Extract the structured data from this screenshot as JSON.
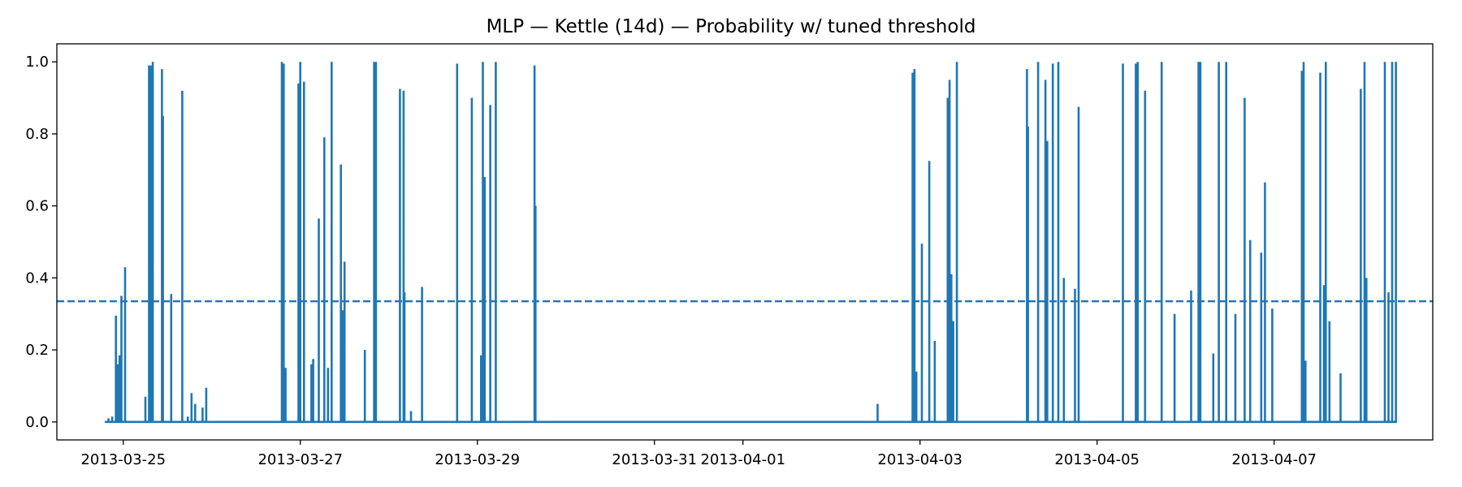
{
  "chart_data": {
    "type": "line",
    "title": "MLP — Kettle (14d) — Probability w/ tuned threshold",
    "xlabel": "",
    "ylabel": "",
    "x_axis_type": "date",
    "xlim": [
      "2013-03-24T06:00",
      "2013-04-08T19:00"
    ],
    "ylim": [
      -0.05,
      1.05
    ],
    "x_ticks": [
      "2013-03-25",
      "2013-03-27",
      "2013-03-29",
      "2013-03-31",
      "2013-04-01",
      "2013-04-03",
      "2013-04-05",
      "2013-04-07"
    ],
    "y_ticks": [
      0.0,
      0.2,
      0.4,
      0.6,
      0.8,
      1.0
    ],
    "y_tick_labels": [
      "0.0",
      "0.2",
      "0.4",
      "0.6",
      "0.8",
      "1.0"
    ],
    "grid": false,
    "legend": "none",
    "line_color": "#1f77b4",
    "threshold": {
      "value": 0.335,
      "style": "dashed",
      "color": "#1f77b4"
    },
    "series": [
      {
        "x_start": "2013-03-24T19:00",
        "x_end": "2013-04-07T21:00",
        "baseline": 0.0,
        "spikes": [
          [
            "2013-03-24T20:00",
            0.01
          ],
          [
            "2013-03-24T21:00",
            0.015
          ],
          [
            "2013-03-24T22:00",
            0.295
          ],
          [
            "2013-03-24T22:30",
            0.16
          ],
          [
            "2013-03-24T23:00",
            0.185
          ],
          [
            "2013-03-24T23:30",
            0.35
          ],
          [
            "2013-03-25T00:30",
            0.43
          ],
          [
            "2013-03-25T06:00",
            0.07
          ],
          [
            "2013-03-25T07:00",
            0.99
          ],
          [
            "2013-03-25T07:30",
            0.99
          ],
          [
            "2013-03-25T08:00",
            1.0
          ],
          [
            "2013-03-25T10:30",
            0.98
          ],
          [
            "2013-03-25T10:45",
            0.85
          ],
          [
            "2013-03-25T13:00",
            0.355
          ],
          [
            "2013-03-25T16:00",
            0.92
          ],
          [
            "2013-03-25T17:30",
            0.015
          ],
          [
            "2013-03-25T18:30",
            0.08
          ],
          [
            "2013-03-25T19:30",
            0.05
          ],
          [
            "2013-03-25T21:30",
            0.04
          ],
          [
            "2013-03-25T22:30",
            0.095
          ],
          [
            "2013-03-26T19:00",
            1.0
          ],
          [
            "2013-03-26T19:30",
            0.995
          ],
          [
            "2013-03-26T20:00",
            0.15
          ],
          [
            "2013-03-26T23:30",
            0.94
          ],
          [
            "2013-03-27T00:00",
            1.0
          ],
          [
            "2013-03-27T01:00",
            0.945
          ],
          [
            "2013-03-27T03:00",
            0.16
          ],
          [
            "2013-03-27T03:30",
            0.175
          ],
          [
            "2013-03-27T05:00",
            0.565
          ],
          [
            "2013-03-27T06:30",
            0.79
          ],
          [
            "2013-03-27T07:30",
            0.15
          ],
          [
            "2013-03-27T08:30",
            1.0
          ],
          [
            "2013-03-27T11:00",
            0.715
          ],
          [
            "2013-03-27T11:30",
            0.31
          ],
          [
            "2013-03-27T12:00",
            0.445
          ],
          [
            "2013-03-27T17:30",
            0.2
          ],
          [
            "2013-03-27T20:00",
            1.0
          ],
          [
            "2013-03-27T20:30",
            1.0
          ],
          [
            "2013-03-28T03:00",
            0.925
          ],
          [
            "2013-03-28T04:00",
            0.92
          ],
          [
            "2013-03-28T04:15",
            0.36
          ],
          [
            "2013-03-28T06:00",
            0.03
          ],
          [
            "2013-03-28T09:00",
            0.375
          ],
          [
            "2013-03-28T18:30",
            0.995
          ],
          [
            "2013-03-28T22:30",
            0.9
          ],
          [
            "2013-03-29T01:00",
            0.185
          ],
          [
            "2013-03-29T01:30",
            1.0
          ],
          [
            "2013-03-29T02:00",
            0.68
          ],
          [
            "2013-03-29T03:30",
            0.88
          ],
          [
            "2013-03-29T05:00",
            1.0
          ],
          [
            "2013-03-29T15:30",
            0.99
          ],
          [
            "2013-03-29T15:45",
            0.6
          ],
          [
            "2013-04-02T12:30",
            0.05
          ],
          [
            "2013-04-02T22:00",
            0.97
          ],
          [
            "2013-04-02T22:30",
            0.98
          ],
          [
            "2013-04-02T23:00",
            0.14
          ],
          [
            "2013-04-03T00:30",
            0.495
          ],
          [
            "2013-04-03T02:30",
            0.725
          ],
          [
            "2013-04-03T04:00",
            0.225
          ],
          [
            "2013-04-03T07:30",
            0.9
          ],
          [
            "2013-04-03T08:00",
            0.95
          ],
          [
            "2013-04-03T08:30",
            0.41
          ],
          [
            "2013-04-03T09:00",
            0.28
          ],
          [
            "2013-04-03T10:00",
            1.0
          ],
          [
            "2013-04-04T05:00",
            0.98
          ],
          [
            "2013-04-04T05:15",
            0.82
          ],
          [
            "2013-04-04T08:00",
            1.0
          ],
          [
            "2013-04-04T10:00",
            0.95
          ],
          [
            "2013-04-04T10:30",
            0.78
          ],
          [
            "2013-04-04T12:00",
            0.995
          ],
          [
            "2013-04-04T13:30",
            1.0
          ],
          [
            "2013-04-04T15:00",
            0.4
          ],
          [
            "2013-04-04T18:00",
            0.37
          ],
          [
            "2013-04-04T19:00",
            0.875
          ],
          [
            "2013-04-05T07:00",
            0.995
          ],
          [
            "2013-04-05T10:30",
            0.995
          ],
          [
            "2013-04-05T11:00",
            1.0
          ],
          [
            "2013-04-05T13:00",
            0.92
          ],
          [
            "2013-04-05T17:30",
            1.0
          ],
          [
            "2013-04-05T21:00",
            0.3
          ],
          [
            "2013-04-06T01:30",
            0.365
          ],
          [
            "2013-04-06T03:30",
            1.0
          ],
          [
            "2013-04-06T04:00",
            1.0
          ],
          [
            "2013-04-06T07:30",
            0.19
          ],
          [
            "2013-04-06T09:00",
            1.0
          ],
          [
            "2013-04-06T11:00",
            1.0
          ],
          [
            "2013-04-06T13:30",
            0.3
          ],
          [
            "2013-04-06T16:00",
            0.9
          ],
          [
            "2013-04-06T17:30",
            0.505
          ],
          [
            "2013-04-06T20:30",
            0.47
          ],
          [
            "2013-04-06T21:30",
            0.665
          ],
          [
            "2013-04-06T23:30",
            0.315
          ],
          [
            "2013-04-07T07:30",
            0.975
          ],
          [
            "2013-04-07T08:00",
            1.0
          ],
          [
            "2013-04-07T08:30",
            0.17
          ],
          [
            "2013-04-07T12:30",
            0.97
          ],
          [
            "2013-04-07T13:30",
            0.38
          ],
          [
            "2013-04-07T14:00",
            1.0
          ],
          [
            "2013-04-07T15:00",
            0.28
          ],
          [
            "2013-04-07T18:00",
            0.135
          ],
          [
            "2013-04-07T23:30",
            0.925
          ],
          [
            "2013-04-08T01:00",
            0.4
          ],
          [
            "2013-04-08T00:30",
            1.0
          ],
          [
            "2013-04-08T06:00",
            1.0
          ],
          [
            "2013-04-08T07:00",
            0.36
          ],
          [
            "2013-04-08T08:00",
            1.0
          ],
          [
            "2013-04-08T09:00",
            1.0
          ]
        ]
      }
    ]
  }
}
